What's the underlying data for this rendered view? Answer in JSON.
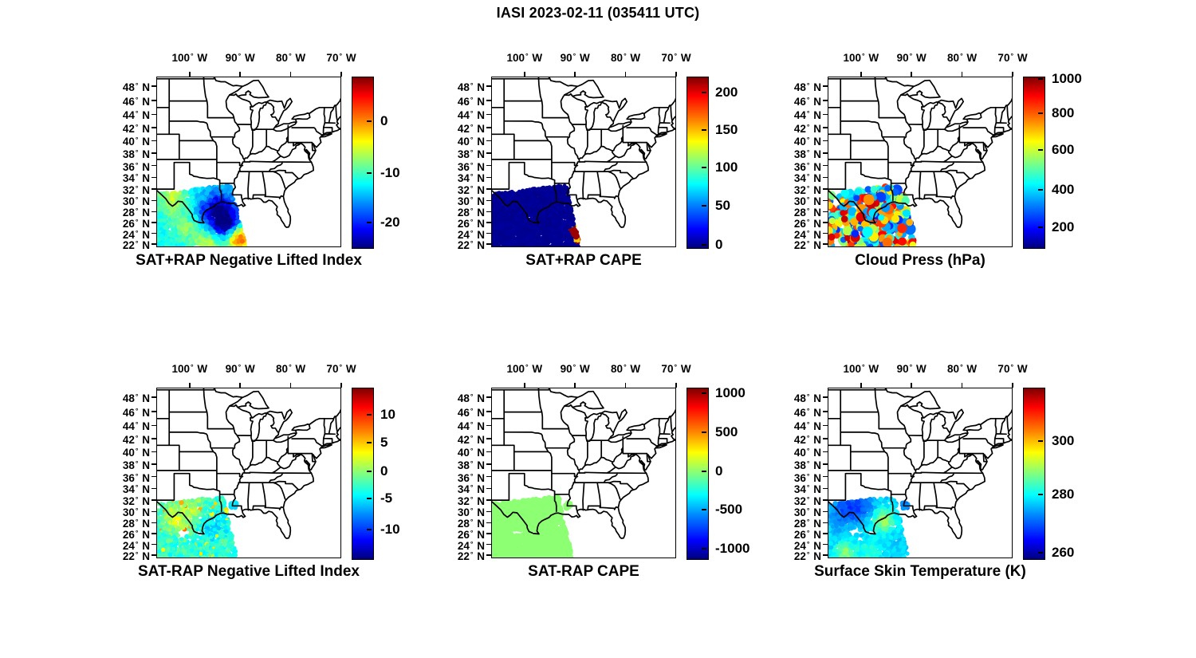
{
  "header": {
    "title": "IASI 2023-02-11 (035411 UTC)"
  },
  "axes": {
    "lon_tick_values": [
      100,
      90,
      80,
      70
    ],
    "lon_suffix": "W",
    "lat_tick_values": [
      48,
      46,
      44,
      42,
      40,
      38,
      36,
      34,
      32,
      30,
      28,
      26,
      24,
      22
    ],
    "lat_suffix": "N",
    "degree_symbol": "°",
    "map_extent_lon_west": [
      106.6,
      70.0
    ],
    "map_extent_lat_north": [
      21.4,
      49.3
    ]
  },
  "panels": [
    {
      "title": "SAT+RAP Negative Lifted Index",
      "colorbar_ticks": [
        "0",
        "-10",
        "-20"
      ],
      "colorbar_tick_pos": [
        0.262,
        0.565,
        0.855
      ]
    },
    {
      "title": "SAT+RAP CAPE",
      "colorbar_ticks": [
        "200",
        "150",
        "100",
        "50",
        "0"
      ],
      "colorbar_tick_pos": [
        0.093,
        0.313,
        0.533,
        0.757,
        0.986
      ]
    },
    {
      "title": "Cloud Press (hPa)",
      "colorbar_ticks": [
        "1000",
        "800",
        "600",
        "400",
        "200"
      ],
      "colorbar_tick_pos": [
        0.012,
        0.215,
        0.43,
        0.664,
        0.883
      ]
    },
    {
      "title": "SAT-RAP Negative Lifted Index",
      "colorbar_ticks": [
        "10",
        "5",
        "0",
        "-5",
        "-10"
      ],
      "colorbar_tick_pos": [
        0.159,
        0.322,
        0.491,
        0.65,
        0.832
      ]
    },
    {
      "title": "SAT-RAP CAPE",
      "colorbar_ticks": [
        "1000",
        "500",
        "0",
        "-500",
        "-1000"
      ],
      "colorbar_tick_pos": [
        0.033,
        0.262,
        0.491,
        0.715,
        0.944
      ]
    },
    {
      "title": "Surface Skin Temperature (K)",
      "colorbar_ticks": [
        "300",
        "280",
        "260"
      ],
      "colorbar_tick_pos": [
        0.313,
        0.626,
        0.967
      ]
    }
  ],
  "colors": {
    "colormap": "jet",
    "jet_stops": [
      "#00007f",
      "#0000ff",
      "#00ffff",
      "#80ff80",
      "#ffff00",
      "#ff0000",
      "#7f0000"
    ],
    "map_line": "#000000",
    "background": "#ffffff"
  },
  "chart_data": [
    {
      "type": "heatmap",
      "title": "SAT+RAP Negative Lifted Index",
      "lon_ticks_w": [
        100,
        90,
        80,
        70
      ],
      "lat_ticks_n": [
        48,
        46,
        44,
        42,
        40,
        38,
        36,
        34,
        32,
        30,
        28,
        26,
        24,
        22
      ],
      "colorbar_tick_values": [
        0,
        -10,
        -20
      ],
      "colorbar_range_est": [
        -25,
        9
      ],
      "data_region": "IASI swath over Texas and western Gulf of Mexico, approx lon 107W-89W, lat 21N-33N",
      "value_summary": "field mostly -14 to -6 (cyan/green); deep minimum near -23 around 94W 28N; maximum near +4 (orange-red) around 90.5W 23.5N; green-yellow band along 22N"
    },
    {
      "type": "heatmap",
      "title": "SAT+RAP CAPE",
      "colorbar_tick_values": [
        200,
        150,
        100,
        50,
        0
      ],
      "data_region": "same IASI swath",
      "value_summary": "near 0 J/kg over entire swath (dark blue); isolated maximum ~215 (dark red) at east swath edge near 90W 23-25.5N with small yellow/cyan fringe"
    },
    {
      "type": "scatter",
      "title": "Cloud Press (hPa)",
      "colorbar_tick_values": [
        1000,
        800,
        600,
        400,
        200
      ],
      "data_region": "same IASI swath",
      "value_summary": "discrete cloudy retrievals 150-1000 hPa; mix of low-pressure (300-450, blue/cyan) and high-pressure (700-950, orange/red) points with yellow 550-650 points interspersed"
    },
    {
      "type": "scatter",
      "title": "SAT-RAP Negative Lifted Index",
      "colorbar_tick_values": [
        10,
        5,
        0,
        -5,
        -10
      ],
      "data_region": "same IASI swath (clear-sky subset with data gaps)",
      "value_summary": "differences mostly -5 to +2 (cyan/green); yellow patches ~+3 in northwest of swath; small blue cluster ~-6 near 91.5W 31N"
    },
    {
      "type": "heatmap",
      "title": "SAT-RAP CAPE",
      "colorbar_tick_values": [
        1000,
        500,
        0,
        -500,
        -1000
      ],
      "data_region": "same IASI swath (with data gaps)",
      "value_summary": "uniform difference ~0 J/kg (light green) across entire swath"
    },
    {
      "type": "scatter",
      "title": "Surface Skin Temperature (K)",
      "colorbar_tick_values": [
        300,
        280,
        260
      ],
      "data_region": "same IASI swath (with data gaps)",
      "value_summary": "268-272 K (blue) over land in northwest of swath; ~277 K (cyan) over central Gulf; 288-292 K (green-yellow) along Texas coastal bend and southwest corner"
    }
  ]
}
